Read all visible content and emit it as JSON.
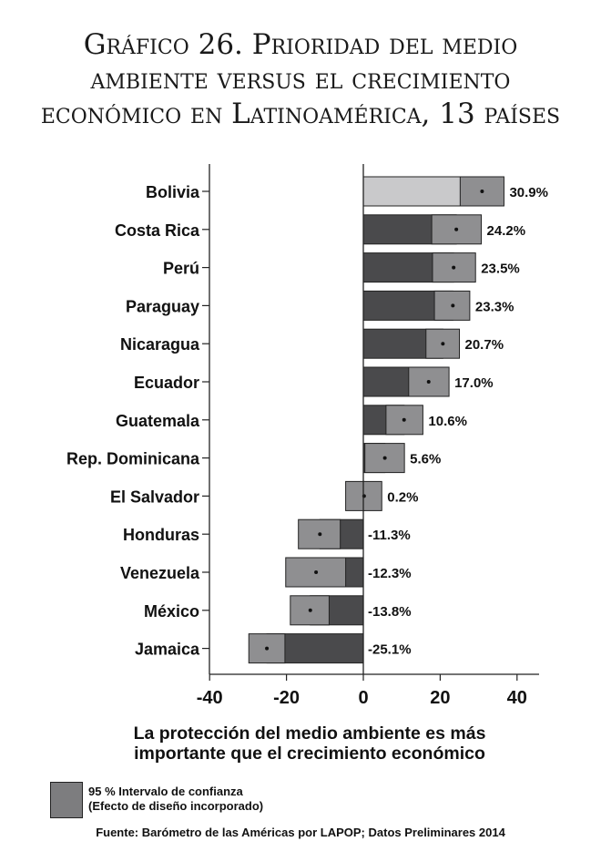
{
  "title_lines": [
    "Gráfico 26.   Prioridad del medio",
    "ambiente  versus el crecimiento",
    "económico en Latinoamérica, 13 países"
  ],
  "xlabel_lines": [
    "La protección del medio ambiente es más",
    "importante que el crecimiento económico"
  ],
  "legend": {
    "line1": "95 % Intervalo de confianza",
    "line2": "(Efecto de diseño incorporado)"
  },
  "source": "Fuente: Barómetro de las Américas por LAPOP; Datos Preliminares 2014",
  "colors": {
    "bar_dark": "#4a4a4c",
    "bar_highlight": "#c9c9cb",
    "ci_fill": "#8f8f91",
    "stroke": "#222222"
  },
  "chart_data": {
    "type": "bar",
    "orientation": "horizontal",
    "xlim": [
      -40,
      45
    ],
    "xticks": [
      -40,
      -20,
      0,
      20,
      40
    ],
    "grid": false,
    "categories": [
      "Bolivia",
      "Costa Rica",
      "Perú",
      "Paraguay",
      "Nicaragua",
      "Ecuador",
      "Guatemala",
      "Rep. Dominicana",
      "El Salvador",
      "Honduras",
      "Venezuela",
      "México",
      "Jamaica"
    ],
    "values": [
      30.9,
      24.2,
      23.5,
      23.3,
      20.7,
      17.0,
      10.6,
      5.6,
      0.2,
      -11.3,
      -12.3,
      -13.8,
      -25.1
    ],
    "labels": [
      "30.9%",
      "24.2%",
      "23.5%",
      "23.3%",
      "20.7%",
      "17.0%",
      "10.6%",
      "5.6%",
      "0.2%",
      "-11.3%",
      "-12.3%",
      "-13.8%",
      "-25.1%"
    ],
    "ci_low": [
      25.2,
      17.8,
      18.0,
      18.5,
      16.3,
      11.8,
      5.9,
      0.4,
      -4.6,
      -16.9,
      -20.2,
      -19.0,
      -29.8
    ],
    "ci_high": [
      36.6,
      30.7,
      29.2,
      27.7,
      25.0,
      22.3,
      15.5,
      10.7,
      4.8,
      -6.0,
      -4.6,
      -8.9,
      -20.4
    ],
    "highlight": "Bolivia"
  }
}
